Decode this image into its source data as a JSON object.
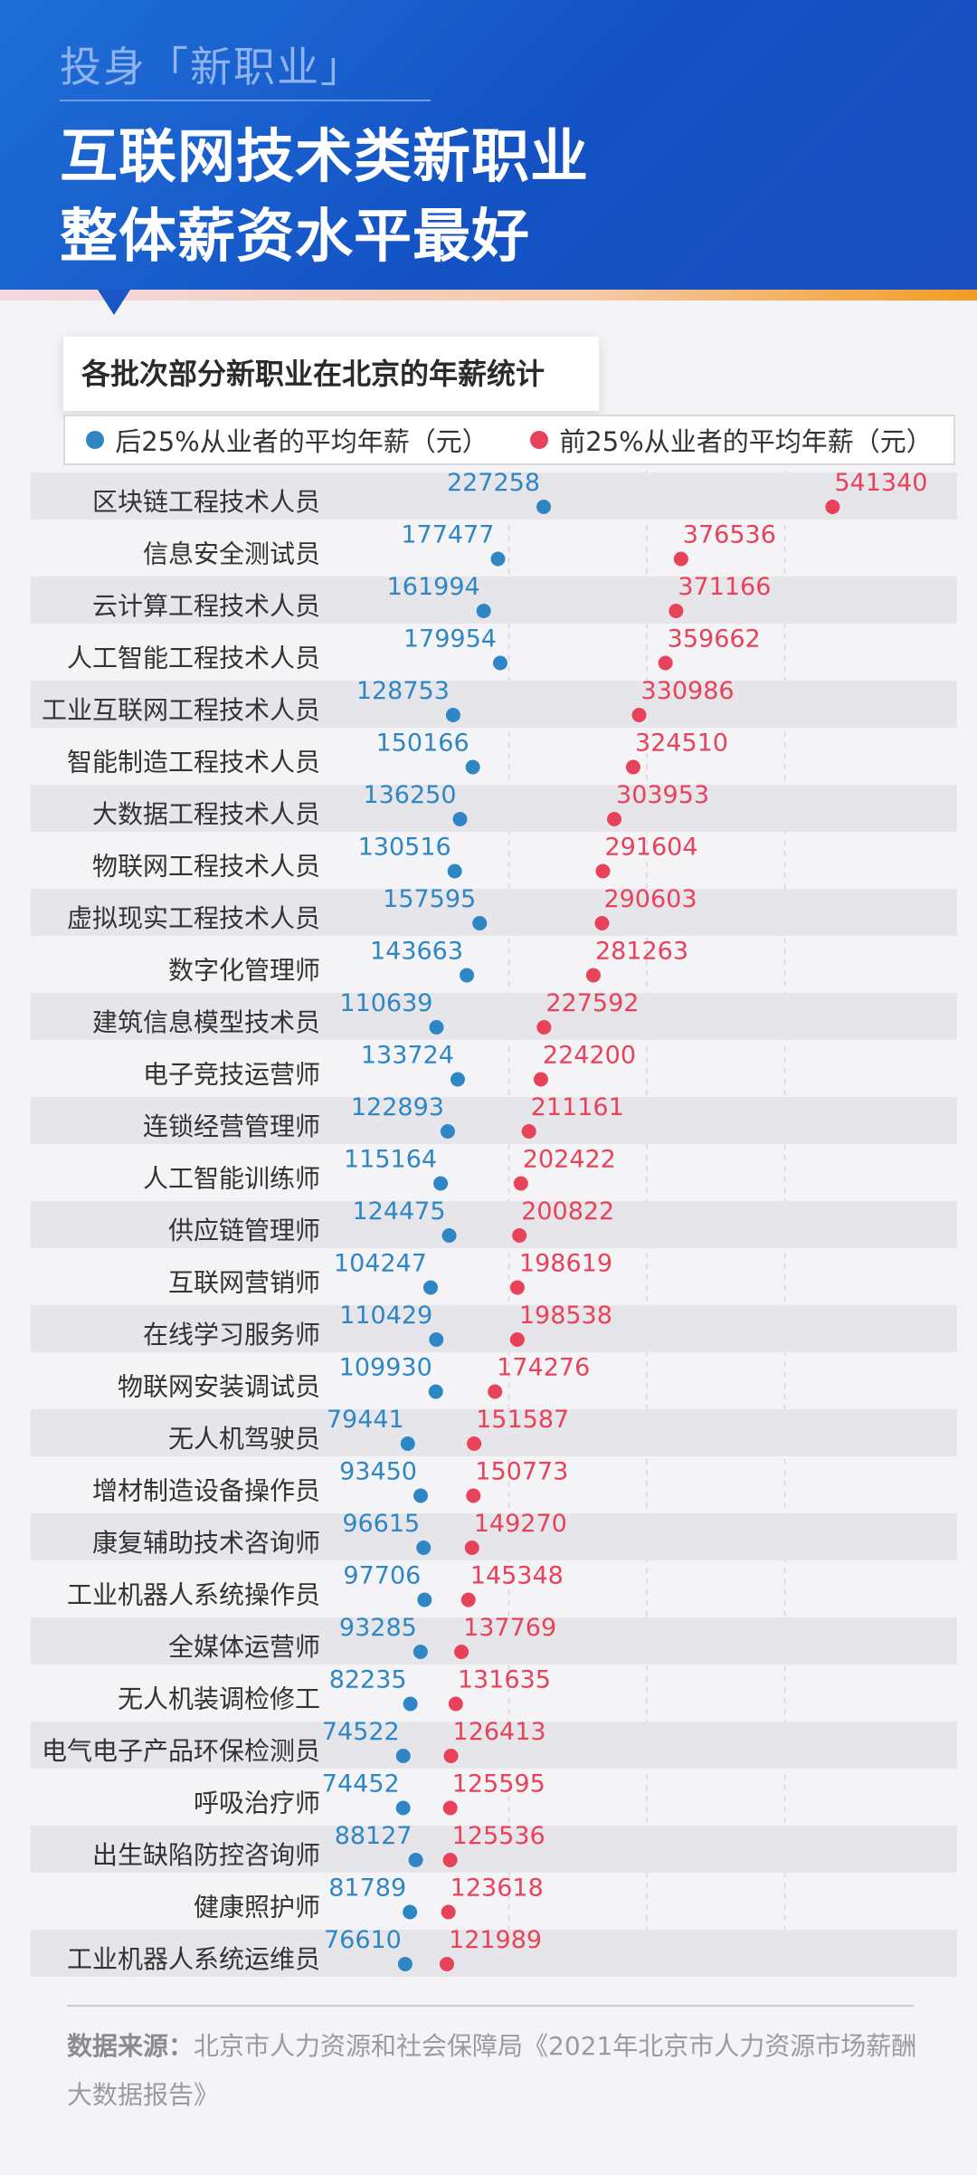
{
  "header": {
    "kicker": "投身「新职业」",
    "title_line1": "互联网技术类新职业",
    "title_line2": "整体薪资水平最好"
  },
  "legend": {
    "low_label": "后25%从业者的平均年薪（元）",
    "high_label": "前25%从业者的平均年薪（元）"
  },
  "colors": {
    "low": "#2f86c5",
    "high": "#e8425a"
  },
  "chart_data": {
    "type": "dumbbell",
    "title": "各批次部分新职业在北京的年薪统计",
    "series": [
      {
        "name": "后25%从业者的平均年薪（元）",
        "values": [
          227258,
          177477,
          161994,
          179954,
          128753,
          150166,
          136250,
          130516,
          157595,
          143663,
          110639,
          133724,
          122893,
          115164,
          124475,
          104247,
          110429,
          109930,
          79441,
          93450,
          96615,
          97706,
          93285,
          82235,
          74522,
          74452,
          88127,
          81789,
          76610
        ]
      },
      {
        "name": "前25%从业者的平均年薪（元）",
        "values": [
          541340,
          376536,
          371166,
          359662,
          330986,
          324510,
          303953,
          291604,
          290603,
          281263,
          227592,
          224200,
          211161,
          202422,
          200822,
          198619,
          198538,
          174276,
          151587,
          150773,
          149270,
          145348,
          137769,
          131635,
          126413,
          125595,
          125536,
          123618,
          121989
        ]
      }
    ],
    "categories": [
      "区块链工程技术人员",
      "信息安全测试员",
      "云计算工程技术人员",
      "人工智能工程技术人员",
      "工业互联网工程技术人员",
      "智能制造工程技术人员",
      "大数据工程技术人员",
      "物联网工程技术人员",
      "虚拟现实工程技术人员",
      "数字化管理师",
      "建筑信息模型技术员",
      "电子竞技运营师",
      "连锁经营管理师",
      "人工智能训练师",
      "供应链管理师",
      "互联网营销师",
      "在线学习服务师",
      "物联网安装调试员",
      "无人机驾驶员",
      "增材制造设备操作员",
      "康复辅助技术咨询师",
      "工业机器人系统操作员",
      "全媒体运营师",
      "无人机装调检修工",
      "电气电子产品环保检测员",
      "呼吸治疗师",
      "出生缺陷防控咨询师",
      "健康照护师",
      "工业机器人系统运维员"
    ],
    "xlim": [
      0,
      600000
    ]
  },
  "footer": {
    "source_label": "数据来源：",
    "source_text": "北京市人力资源和社会保障局《2021年北京市人力资源市场薪酬大数据报告》"
  }
}
